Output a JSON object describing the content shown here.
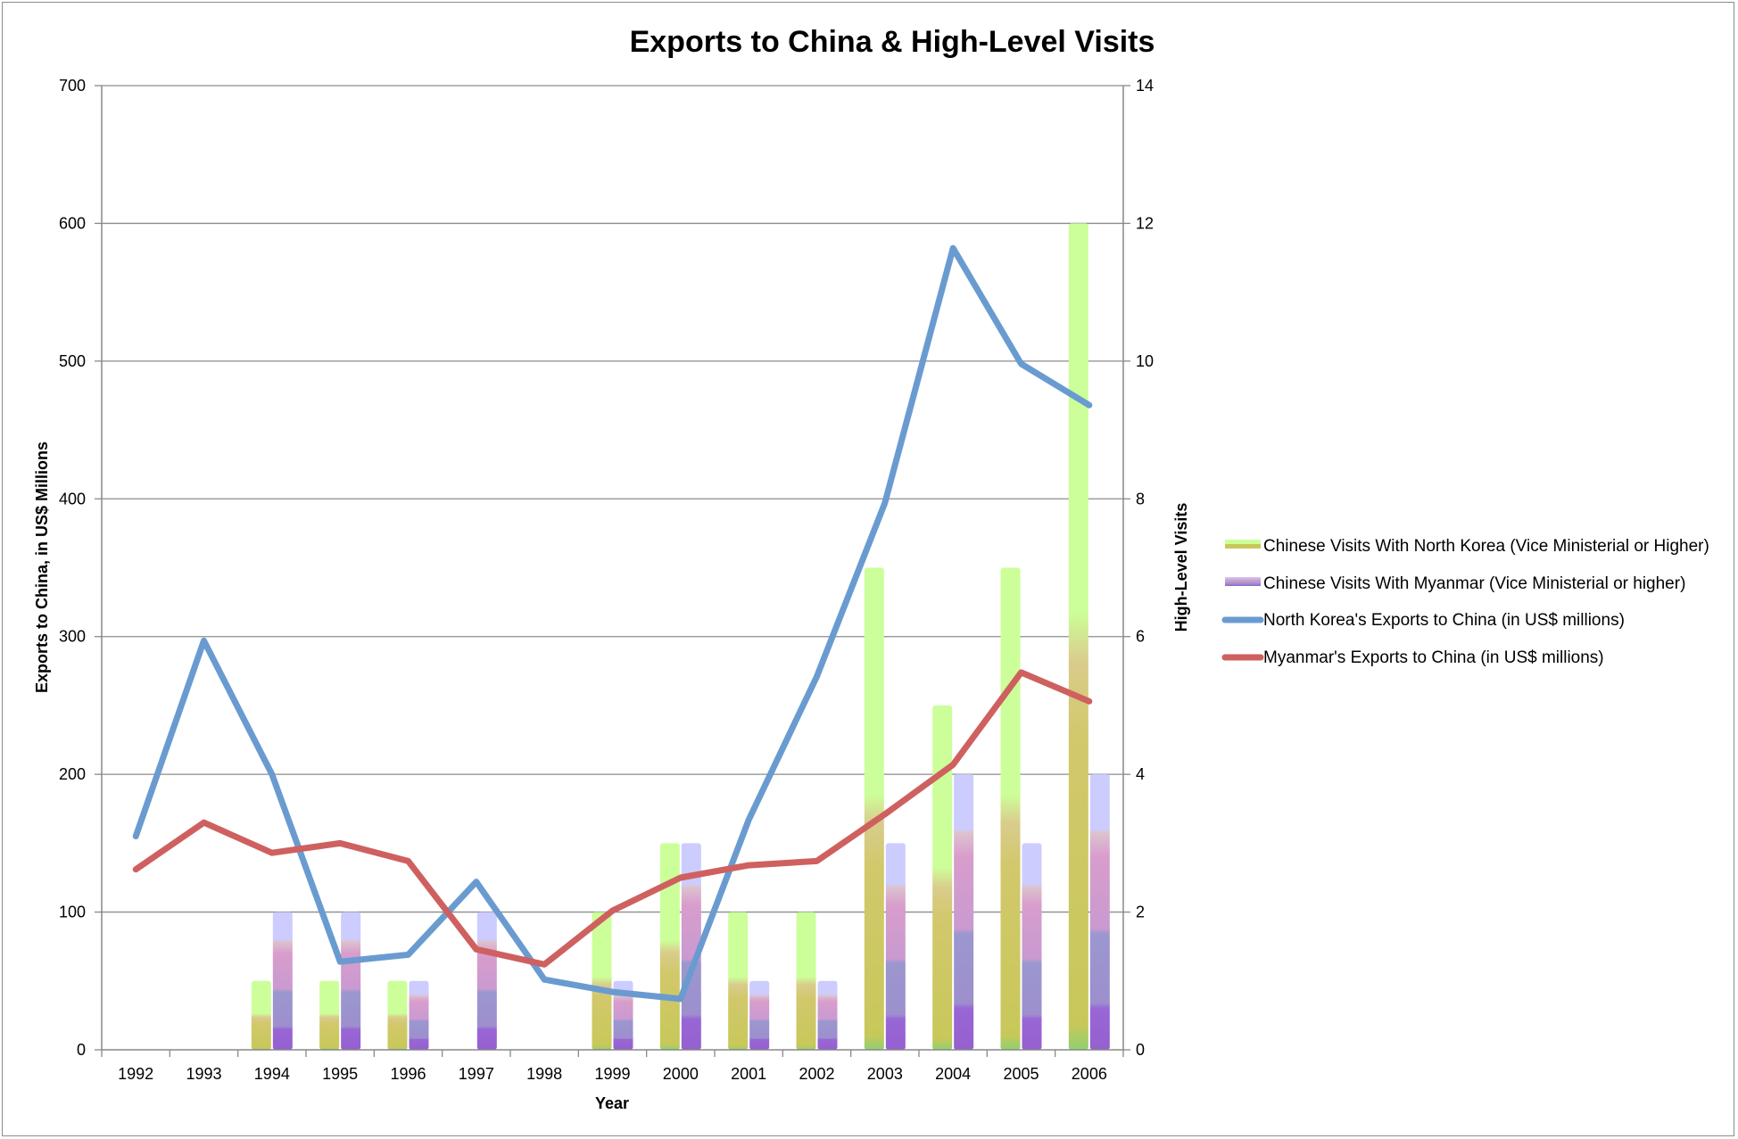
{
  "chart_data": {
    "type": "bar",
    "title": "Exports to China & High-Level Visits",
    "xlabel": "Year",
    "ylabel": "Exports to China, in US$ Millions",
    "y2label": "High-Level Visits",
    "ylim": [
      0,
      700
    ],
    "y2lim": [
      0,
      14
    ],
    "yticks": [
      "0",
      "100",
      "200",
      "300",
      "400",
      "500",
      "600",
      "700"
    ],
    "y2ticks": [
      "0",
      "2",
      "4",
      "6",
      "8",
      "10",
      "12",
      "14"
    ],
    "categories": [
      "1992",
      "1993",
      "1994",
      "1995",
      "1996",
      "1997",
      "1998",
      "1999",
      "2000",
      "2001",
      "2002",
      "2003",
      "2004",
      "2005",
      "2006"
    ],
    "grid": true,
    "legend_position": "right",
    "series": [
      {
        "name": "Chinese Visits With North Korea (Vice Ministerial or Higher)",
        "kind": "bar",
        "axis": "right",
        "color": "#c2d94a",
        "values": [
          0,
          0,
          1,
          1,
          1,
          0,
          0,
          2,
          3,
          2,
          2,
          7,
          5,
          7,
          12
        ]
      },
      {
        "name": "Chinese Visits With Myanmar (Vice Ministerial or higher)",
        "kind": "bar",
        "axis": "right",
        "color": "#a78ad6",
        "values": [
          0,
          0,
          2,
          2,
          1,
          2,
          0,
          1,
          3,
          1,
          1,
          3,
          4,
          3,
          4
        ]
      },
      {
        "name": "North Korea's Exports to China (in US$ millions)",
        "kind": "line",
        "axis": "left",
        "color": "#6a9bd0",
        "values": [
          155,
          297,
          200,
          64,
          69,
          122,
          51,
          42,
          37,
          167,
          271,
          397,
          582,
          498,
          468
        ]
      },
      {
        "name": "Myanmar's Exports to China (in US$ millions)",
        "kind": "line",
        "axis": "left",
        "color": "#cf6060",
        "values": [
          131,
          165,
          143,
          150,
          137,
          73,
          62,
          101,
          125,
          134,
          137,
          171,
          207,
          274,
          253
        ]
      }
    ]
  }
}
